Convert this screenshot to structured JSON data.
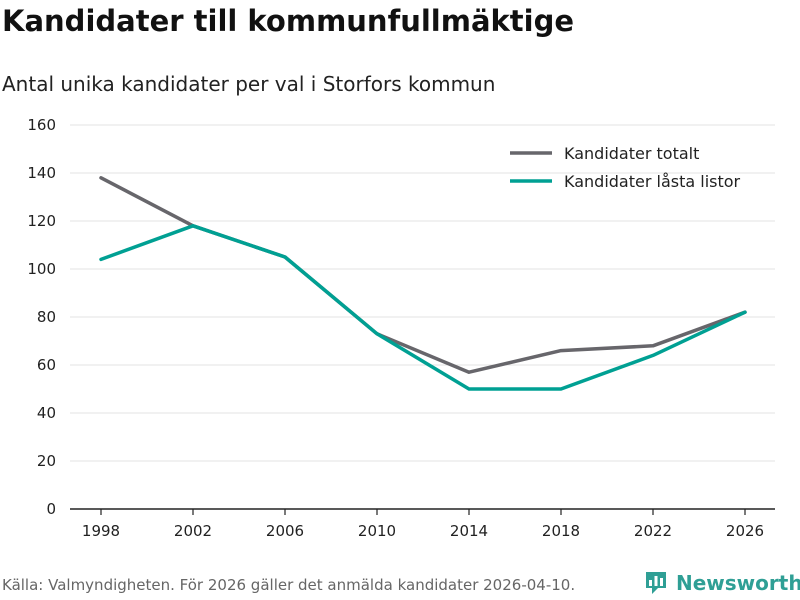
{
  "header": {
    "title": "Kandidater till kommunfullmäktige",
    "subtitle": "Antal unika kandidater per val i Storfors kommun"
  },
  "chart_data": {
    "type": "line",
    "title": "Kandidater till kommunfullmäktige",
    "subtitle": "Antal unika kandidater per val i Storfors kommun",
    "xlabel": "",
    "ylabel": "",
    "categories": [
      "1998",
      "2002",
      "2006",
      "2010",
      "2014",
      "2018",
      "2022",
      "2026"
    ],
    "ylim": [
      0,
      160
    ],
    "yticks": [
      0,
      20,
      40,
      60,
      80,
      100,
      120,
      140,
      160
    ],
    "grid": true,
    "legend_position": "top-right",
    "series": [
      {
        "name": "Kandidater totalt",
        "color": "#67666b",
        "values": [
          138,
          118,
          105,
          73,
          57,
          66,
          68,
          82
        ]
      },
      {
        "name": "Kandidater låsta listor",
        "color": "#00a093",
        "values": [
          104,
          118,
          105,
          73,
          50,
          50,
          64,
          82
        ]
      }
    ]
  },
  "footer": {
    "source": "Källa: Valmyndigheten. För 2026 gäller det anmälda kandidater 2026-04-10.",
    "brand": "Newsworthy",
    "brand_icon": "newsworthy-logo-icon",
    "brand_color": "#2f9f95"
  }
}
